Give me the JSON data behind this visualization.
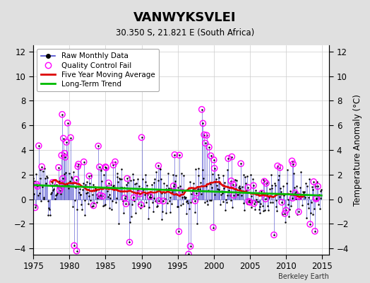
{
  "title": "VANWYKSVLEI",
  "subtitle": "30.350 S, 21.821 E (South Africa)",
  "ylabel_right": "Temperature Anomaly (°C)",
  "credit": "Berkeley Earth",
  "xlim": [
    1975,
    2016
  ],
  "ylim": [
    -4.5,
    12.5
  ],
  "yticks": [
    -4,
    -2,
    0,
    2,
    4,
    6,
    8,
    10,
    12
  ],
  "xticks": [
    1975,
    1980,
    1985,
    1990,
    1995,
    2000,
    2005,
    2010,
    2015
  ],
  "bg_color": "#e0e0e0",
  "plot_bg_color": "#ffffff",
  "raw_color": "#4444cc",
  "raw_marker_color": "#000000",
  "qc_color": "#ff00ff",
  "moving_avg_color": "#dd0000",
  "trend_color": "#00bb00",
  "seed": 12
}
